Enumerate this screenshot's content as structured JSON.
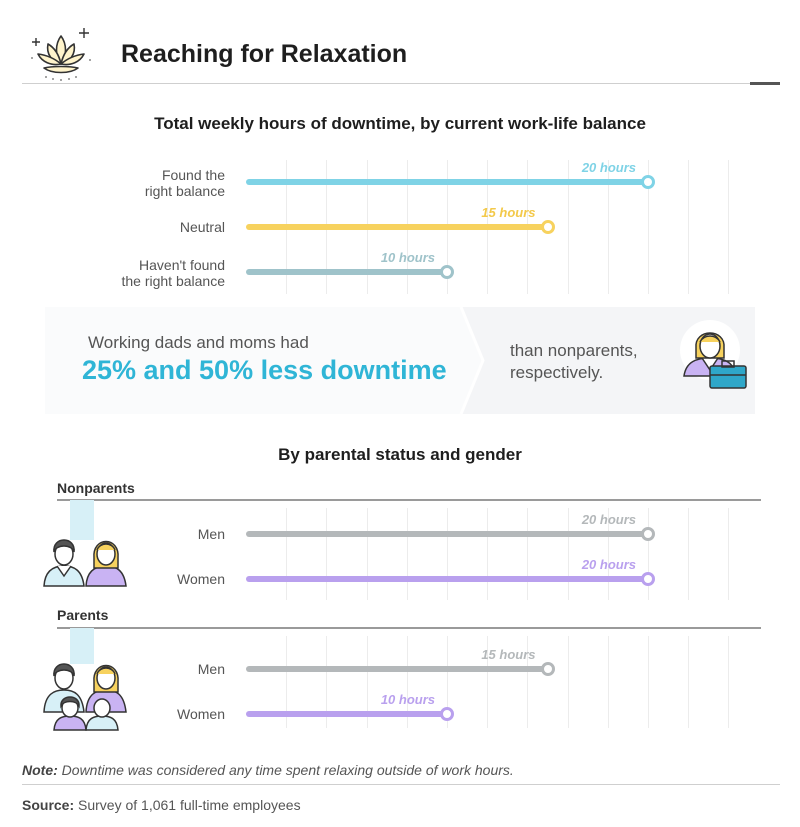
{
  "header": {
    "title": "Reaching for Relaxation",
    "icon": "lotus-icon"
  },
  "chart_data": [
    {
      "type": "bar",
      "orientation": "horizontal",
      "title": "Total weekly hours of downtime, by current work-life balance",
      "categories": [
        "Found the right balance",
        "Neutral",
        "Haven't found the right balance"
      ],
      "category_lines": [
        [
          "Found the",
          "right balance"
        ],
        [
          "Neutral"
        ],
        [
          "Haven't found",
          "the right balance"
        ]
      ],
      "values": [
        20,
        15,
        10
      ],
      "value_labels": [
        "20 hours",
        "15 hours",
        "10 hours"
      ],
      "colors": [
        "#7fd3e6",
        "#f7d25e",
        "#9fc3ca"
      ],
      "label_colors": [
        "#7fd3e6",
        "#f3c94a",
        "#9fc3ca"
      ],
      "xlim": [
        0,
        24
      ],
      "grid": true
    },
    {
      "type": "bar",
      "orientation": "horizontal",
      "title": "By parental status and gender",
      "groups": [
        {
          "name": "Nonparents",
          "icon": "man-woman-couple-icon",
          "categories": [
            "Men",
            "Women"
          ],
          "values": [
            20,
            20
          ],
          "value_labels": [
            "20 hours",
            "20 hours"
          ]
        },
        {
          "name": "Parents",
          "icon": "family-icon",
          "categories": [
            "Men",
            "Women"
          ],
          "values": [
            15,
            10
          ],
          "value_labels": [
            "15 hours",
            "10 hours"
          ]
        }
      ],
      "colors": {
        "Men": "#b4b8ba",
        "Women": "#b9a0ee"
      },
      "xlim": [
        0,
        24
      ],
      "grid": true
    }
  ],
  "callout": {
    "line1": "Working dads and moms had",
    "line2": "25% and 50% less downtime",
    "line3": "than nonparents, respectively.",
    "icon": "businesswoman-briefcase-icon"
  },
  "footer": {
    "note_label": "Note:",
    "note_text": " Downtime was considered any time spent relaxing outside of work hours.",
    "source_label": "Source:",
    "source_text": " Survey of 1,061 full-time employees"
  }
}
